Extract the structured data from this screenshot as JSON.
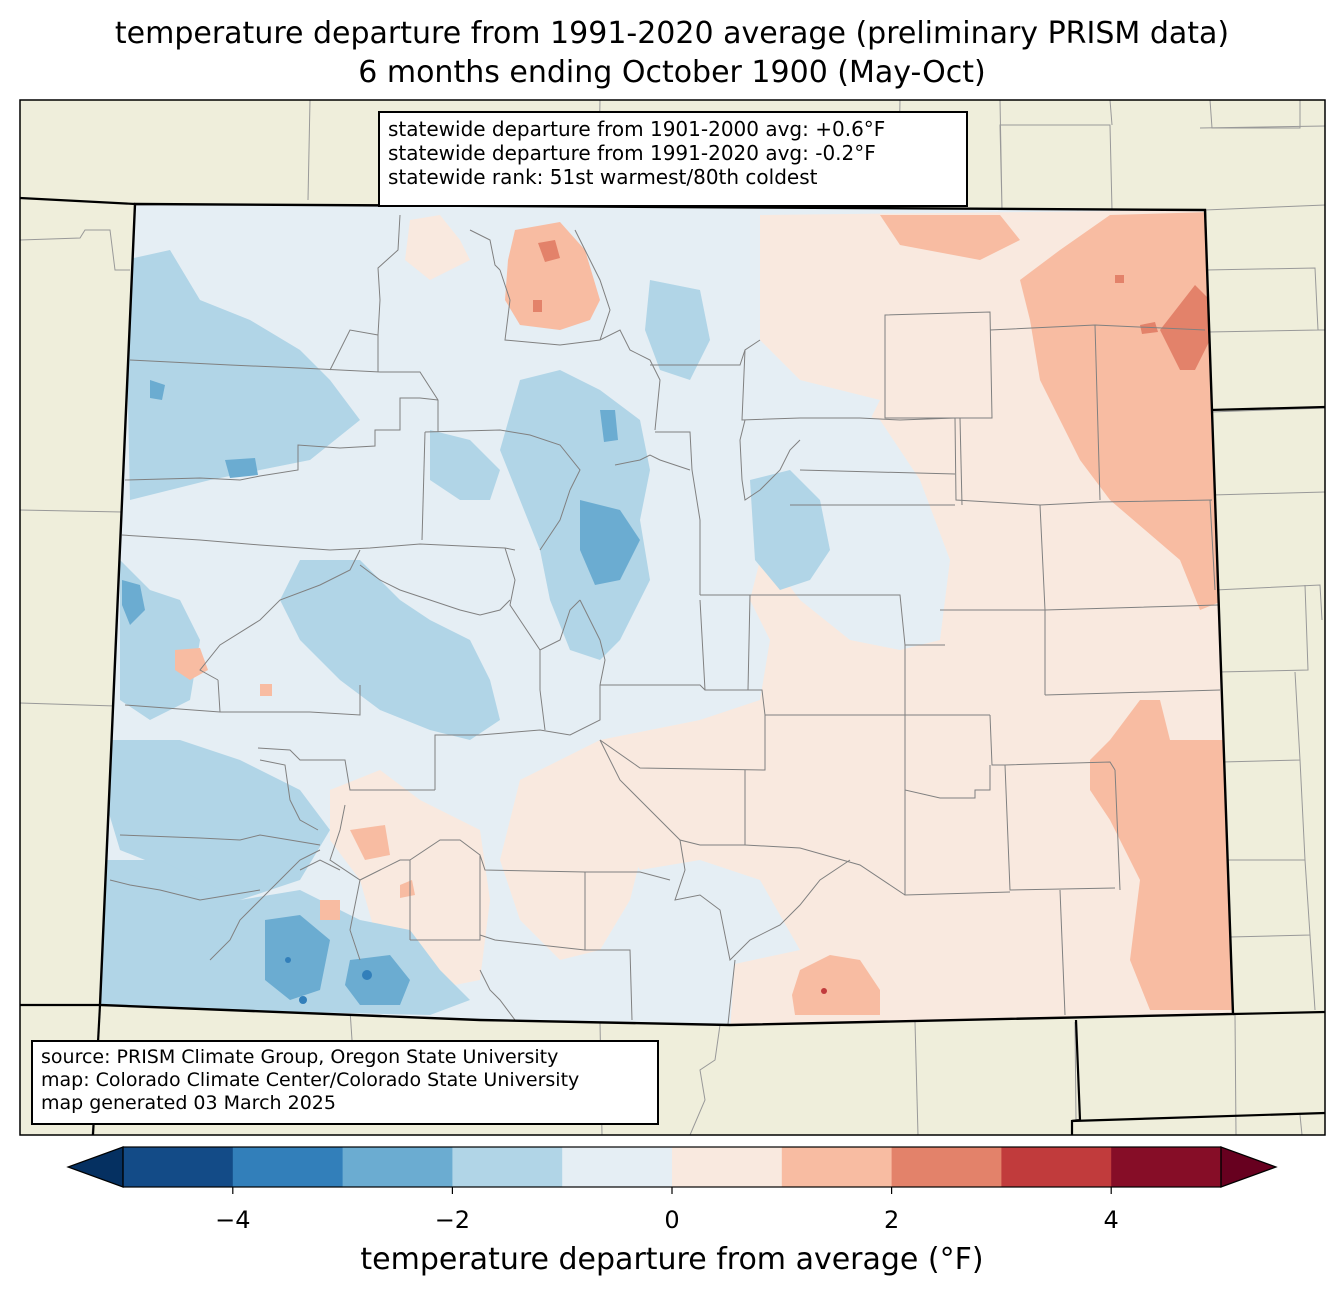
{
  "title": {
    "line1": "temperature departure from 1991-2020 average (preliminary PRISM data)",
    "line2": "6 months ending October 1900 (May-Oct)"
  },
  "stats": {
    "line1": "statewide departure from 1901-2000 avg: +0.6°F",
    "line2": "statewide departure from 1991-2020 avg: -0.2°F",
    "line3": "statewide rank: 51st warmest/80th coldest"
  },
  "source": {
    "line1": "source: PRISM Climate Group, Oregon State University",
    "line2": "map: Colorado Climate Center/Colorado State University",
    "line3": "map generated 03 March 2025"
  },
  "colorbar": {
    "label": "temperature departure from average (°F)",
    "ticks": [
      "−4",
      "−2",
      "0",
      "2",
      "4"
    ],
    "tick_values": [
      -4,
      -2,
      0,
      2,
      4
    ],
    "range": [
      -5,
      5
    ],
    "bins": [
      {
        "from": -5,
        "to": -4,
        "color": "#134b87"
      },
      {
        "from": -4,
        "to": -3,
        "color": "#327fba"
      },
      {
        "from": -3,
        "to": -2,
        "color": "#6bacd1"
      },
      {
        "from": -2,
        "to": -1,
        "color": "#b1d5e7"
      },
      {
        "from": -1,
        "to": 0,
        "color": "#e5eef4"
      },
      {
        "from": 0,
        "to": 1,
        "color": "#f9e9df"
      },
      {
        "from": 1,
        "to": 2,
        "color": "#f8bca2"
      },
      {
        "from": 2,
        "to": 3,
        "color": "#e3826a"
      },
      {
        "from": 3,
        "to": 4,
        "color": "#c13b3c"
      },
      {
        "from": 4,
        "to": 5,
        "color": "#860d27"
      }
    ],
    "under_color": "#053061",
    "over_color": "#67001f"
  },
  "colors": {
    "land": "#efeedb",
    "neutral_cool": "#e5eef4",
    "neutral_warm": "#f9e9df"
  }
}
